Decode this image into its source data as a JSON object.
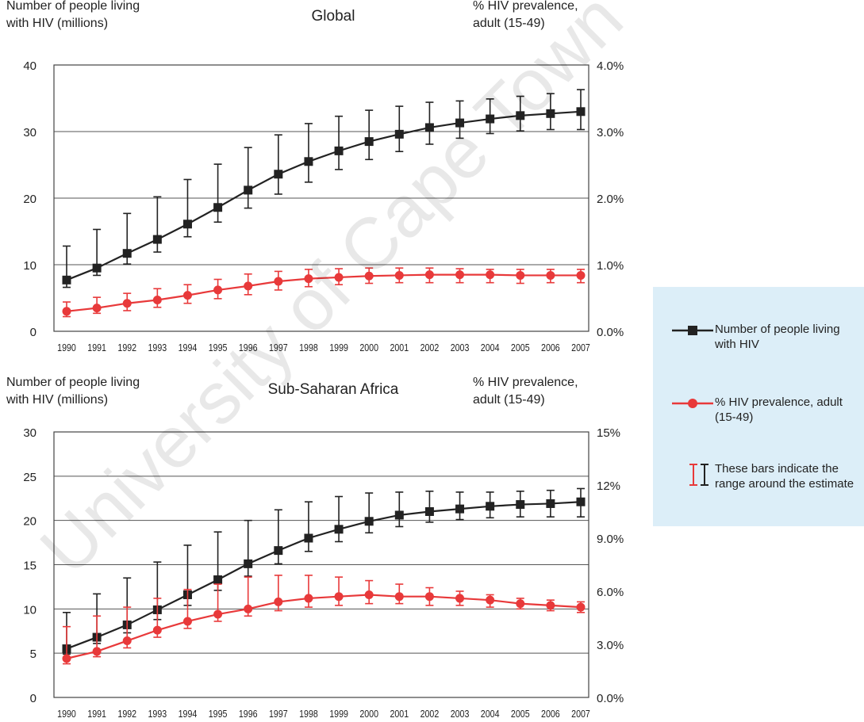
{
  "watermark_text": "University of Cape Town",
  "colors": {
    "count": "#222222",
    "prevalence": "#e8393a",
    "grid": "#555555",
    "legend_bg": "#dceef8"
  },
  "legend": {
    "count_label": "Number of people living with HIV",
    "prevalence_label": "% HIV prevalence, adult (15-49)",
    "range_label": "These bars indicate the range around the estimate"
  },
  "chart_data": [
    {
      "type": "line",
      "title": "Global",
      "ylabel_left": "Number of people living with HIV (millions)",
      "ylabel_right": "% HIV prevalence, adult (15-49)",
      "x": [
        "1990",
        "1991",
        "1992",
        "1993",
        "1994",
        "1995",
        "1996",
        "1997",
        "1998",
        "1999",
        "2000",
        "2001",
        "2002",
        "2003",
        "2004",
        "2005",
        "2006",
        "2007"
      ],
      "ylim_left": [
        0,
        40
      ],
      "yticks_left": [
        "0",
        "10",
        "20",
        "30",
        "40"
      ],
      "ylim_right": [
        0,
        4
      ],
      "yticks_right": [
        "0.0%",
        "1.0%",
        "2.0%",
        "3.0%",
        "4.0%"
      ],
      "grid": true,
      "series": [
        {
          "name": "Number of people living with HIV",
          "axis": "left",
          "values": [
            7.7,
            9.5,
            11.7,
            13.8,
            16.1,
            18.6,
            21.2,
            23.6,
            25.5,
            27.1,
            28.5,
            29.6,
            30.6,
            31.3,
            31.9,
            32.4,
            32.7,
            33.0
          ],
          "low": [
            6.6,
            8.4,
            10.1,
            11.9,
            14.2,
            16.4,
            18.5,
            20.6,
            22.4,
            24.3,
            25.8,
            27.0,
            28.1,
            29.0,
            29.7,
            30.1,
            30.3,
            30.3
          ],
          "high": [
            12.8,
            15.3,
            17.7,
            20.2,
            22.8,
            25.1,
            27.6,
            29.5,
            31.2,
            32.3,
            33.2,
            33.8,
            34.4,
            34.6,
            34.9,
            35.3,
            35.7,
            36.3
          ]
        },
        {
          "name": "% HIV prevalence, adult (15-49)",
          "axis": "right",
          "values": [
            0.3,
            0.35,
            0.42,
            0.47,
            0.54,
            0.62,
            0.68,
            0.75,
            0.79,
            0.81,
            0.83,
            0.84,
            0.85,
            0.85,
            0.85,
            0.84,
            0.84,
            0.84
          ],
          "low": [
            0.22,
            0.27,
            0.31,
            0.36,
            0.42,
            0.49,
            0.55,
            0.62,
            0.67,
            0.7,
            0.72,
            0.73,
            0.73,
            0.73,
            0.73,
            0.72,
            0.73,
            0.73
          ],
          "high": [
            0.44,
            0.51,
            0.57,
            0.64,
            0.7,
            0.78,
            0.86,
            0.9,
            0.93,
            0.94,
            0.95,
            0.95,
            0.95,
            0.94,
            0.93,
            0.93,
            0.93,
            0.93
          ]
        }
      ]
    },
    {
      "type": "line",
      "title": "Sub-Saharan Africa",
      "ylabel_left": "Number of people living with HIV (millions)",
      "ylabel_right": "% HIV prevalence, adult (15-49)",
      "x": [
        "1990",
        "1991",
        "1992",
        "1993",
        "1994",
        "1995",
        "1996",
        "1997",
        "1998",
        "1999",
        "2000",
        "2001",
        "2002",
        "2003",
        "2004",
        "2005",
        "2006",
        "2007"
      ],
      "ylim_left": [
        0,
        30
      ],
      "yticks_left": [
        "0",
        "5",
        "10",
        "15",
        "20",
        "25",
        "30"
      ],
      "ylim_right": [
        0,
        15
      ],
      "yticks_right": [
        "0.0%",
        "3.0%",
        "6.0%",
        "9.0%",
        "12%",
        "15%"
      ],
      "grid": true,
      "series": [
        {
          "name": "Number of people living with HIV",
          "axis": "left",
          "values": [
            5.5,
            6.8,
            8.2,
            9.9,
            11.6,
            13.3,
            15.1,
            16.6,
            18.0,
            19.0,
            19.9,
            20.6,
            21.0,
            21.3,
            21.6,
            21.8,
            21.9,
            22.1
          ],
          "low": [
            4.9,
            6.1,
            7.3,
            8.8,
            10.4,
            12.1,
            13.7,
            15.1,
            16.5,
            17.6,
            18.6,
            19.3,
            19.8,
            20.1,
            20.3,
            20.4,
            20.4,
            20.4
          ],
          "high": [
            9.6,
            11.7,
            13.5,
            15.3,
            17.2,
            18.7,
            20.0,
            21.2,
            22.1,
            22.7,
            23.1,
            23.2,
            23.3,
            23.2,
            23.2,
            23.3,
            23.4,
            23.6
          ]
        },
        {
          "name": "% HIV prevalence, adult (15-49)",
          "axis": "right",
          "values": [
            2.2,
            2.6,
            3.2,
            3.8,
            4.3,
            4.7,
            5.0,
            5.4,
            5.6,
            5.7,
            5.8,
            5.7,
            5.7,
            5.6,
            5.5,
            5.3,
            5.2,
            5.1
          ],
          "low": [
            1.9,
            2.3,
            2.8,
            3.4,
            3.9,
            4.3,
            4.6,
            4.9,
            5.1,
            5.2,
            5.3,
            5.3,
            5.2,
            5.2,
            5.1,
            5.0,
            4.9,
            4.8
          ],
          "high": [
            4.0,
            4.6,
            5.1,
            5.6,
            6.1,
            6.4,
            6.8,
            6.9,
            6.9,
            6.8,
            6.6,
            6.4,
            6.2,
            6.0,
            5.8,
            5.6,
            5.5,
            5.4
          ]
        }
      ]
    }
  ]
}
